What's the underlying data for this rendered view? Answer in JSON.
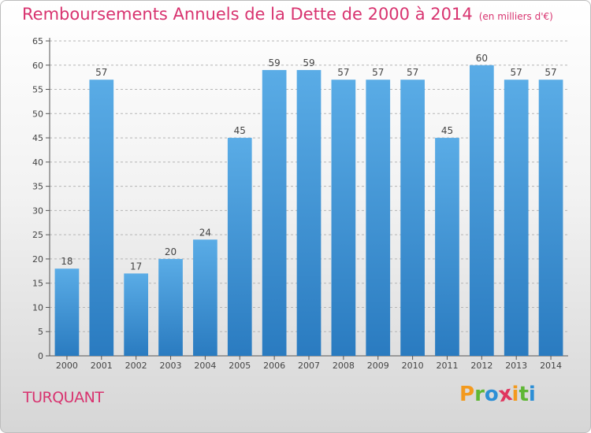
{
  "header": {
    "title": "Remboursements Annuels de la Dette de 2000 à 2014",
    "unit": "(en milliers d'€)"
  },
  "commune": "TURQUANT",
  "logo": {
    "text": "Proxiti",
    "letters": [
      {
        "char": "P",
        "color": "#f39a1e"
      },
      {
        "char": "r",
        "color": "#5fb735"
      },
      {
        "char": "o",
        "color": "#2d8fd6"
      },
      {
        "char": "x",
        "color": "#e0365e"
      },
      {
        "char": "i",
        "color": "#f39a1e"
      },
      {
        "char": "t",
        "color": "#5fb735"
      },
      {
        "char": "i",
        "color": "#2d8fd6"
      }
    ]
  },
  "colors": {
    "bar_top": "#5aace6",
    "bar_bottom": "#2a7bc0",
    "accent": "#d8336f",
    "grid": "#b5b5b5"
  },
  "chart_data": {
    "type": "bar",
    "categories": [
      "2000",
      "2001",
      "2002",
      "2003",
      "2004",
      "2005",
      "2006",
      "2007",
      "2008",
      "2009",
      "2010",
      "2011",
      "2012",
      "2013",
      "2014"
    ],
    "values": [
      18,
      57,
      17,
      20,
      24,
      45,
      59,
      59,
      57,
      57,
      57,
      45,
      60,
      57,
      57
    ],
    "title": "Remboursements Annuels de la Dette de 2000 à 2014",
    "xlabel": "",
    "ylabel": "",
    "ylim": [
      0,
      65
    ],
    "yticks": [
      0,
      5,
      10,
      15,
      20,
      25,
      30,
      35,
      40,
      45,
      50,
      55,
      60,
      65
    ],
    "grid": "horizontal dashed",
    "data_labels": true
  }
}
